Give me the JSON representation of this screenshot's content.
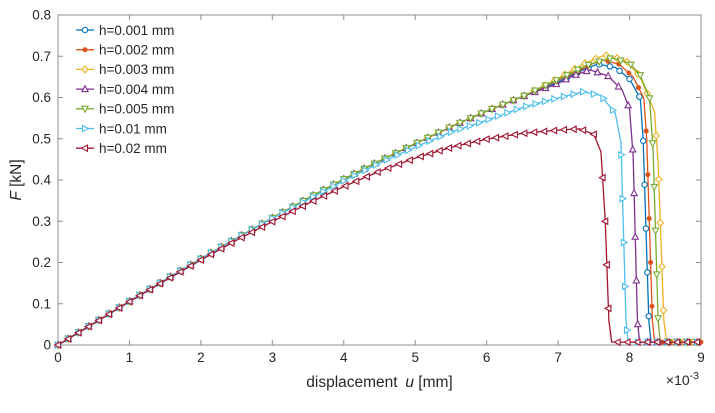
{
  "figure": {
    "background": "#ffffff",
    "axis_color": "#8f8f8f",
    "text_color": "#262626"
  },
  "chart_data": {
    "type": "line",
    "title": "",
    "xlabel": {
      "prefix": "displacement",
      "variable": "u",
      "unit": "[mm]"
    },
    "ylabel": {
      "variable": "F",
      "unit": "[kN]"
    },
    "x_scale_note": {
      "base": "×10",
      "exponent": "-3"
    },
    "x_units_note": "u values below are in units of 10^-3 mm as shown on the axis",
    "xlim": [
      0,
      9
    ],
    "ylim": [
      0,
      0.8
    ],
    "x_ticks": [
      0,
      1,
      2,
      3,
      4,
      5,
      6,
      7,
      8,
      9
    ],
    "x_tick_labels": [
      "0",
      "1",
      "2",
      "3",
      "4",
      "5",
      "6",
      "7",
      "8",
      "9"
    ],
    "y_ticks": [
      0,
      0.1,
      0.2,
      0.3,
      0.4,
      0.5,
      0.6,
      0.7,
      0.8
    ],
    "y_tick_labels": [
      "0",
      "0.1",
      "0.2",
      "0.3",
      "0.4",
      "0.5",
      "0.6",
      "0.7",
      "0.8"
    ],
    "grid": false,
    "legend": {
      "position": "top-left",
      "border": false
    },
    "series": [
      {
        "label": "h=0.001 mm",
        "color": "#0072BD",
        "marker": "circle",
        "marker_filled": false,
        "points": [
          [
            0,
            0
          ],
          [
            0.5,
            0.053
          ],
          [
            1,
            0.106
          ],
          [
            1.5,
            0.158
          ],
          [
            2,
            0.209
          ],
          [
            2.5,
            0.259
          ],
          [
            3,
            0.308
          ],
          [
            3.5,
            0.356
          ],
          [
            4,
            0.402
          ],
          [
            4.5,
            0.446
          ],
          [
            5,
            0.488
          ],
          [
            5.5,
            0.529
          ],
          [
            6,
            0.567
          ],
          [
            6.5,
            0.602
          ],
          [
            7,
            0.638
          ],
          [
            7.3,
            0.663
          ],
          [
            7.55,
            0.681
          ],
          [
            7.8,
            0.673
          ],
          [
            8,
            0.645
          ],
          [
            8.15,
            0.598
          ],
          [
            8.19,
            0.5
          ],
          [
            8.27,
            0.06
          ],
          [
            8.3,
            0.007
          ],
          [
            8.6,
            0.007
          ],
          [
            9,
            0.007
          ]
        ]
      },
      {
        "label": "h=0.002 mm",
        "color": "#D95319",
        "marker": "dot",
        "marker_filled": true,
        "points": [
          [
            0,
            0
          ],
          [
            0.5,
            0.053
          ],
          [
            1,
            0.106
          ],
          [
            1.5,
            0.158
          ],
          [
            2,
            0.209
          ],
          [
            2.5,
            0.259
          ],
          [
            3,
            0.308
          ],
          [
            3.5,
            0.356
          ],
          [
            4,
            0.402
          ],
          [
            4.5,
            0.446
          ],
          [
            5,
            0.488
          ],
          [
            5.5,
            0.529
          ],
          [
            6,
            0.567
          ],
          [
            6.5,
            0.602
          ],
          [
            7,
            0.642
          ],
          [
            7.35,
            0.67
          ],
          [
            7.6,
            0.692
          ],
          [
            7.85,
            0.681
          ],
          [
            8.05,
            0.65
          ],
          [
            8.2,
            0.598
          ],
          [
            8.24,
            0.5
          ],
          [
            8.32,
            0.06
          ],
          [
            8.35,
            0.007
          ],
          [
            8.7,
            0.007
          ],
          [
            9,
            0.007
          ]
        ]
      },
      {
        "label": "h=0.003 mm",
        "color": "#EDB120",
        "marker": "diamond",
        "marker_filled": false,
        "points": [
          [
            0,
            0
          ],
          [
            0.5,
            0.053
          ],
          [
            1,
            0.106
          ],
          [
            1.5,
            0.158
          ],
          [
            2,
            0.209
          ],
          [
            2.5,
            0.259
          ],
          [
            3,
            0.308
          ],
          [
            3.5,
            0.356
          ],
          [
            4,
            0.402
          ],
          [
            4.5,
            0.446
          ],
          [
            5,
            0.488
          ],
          [
            5.5,
            0.529
          ],
          [
            6,
            0.567
          ],
          [
            6.5,
            0.602
          ],
          [
            7,
            0.646
          ],
          [
            7.35,
            0.681
          ],
          [
            7.65,
            0.703
          ],
          [
            7.95,
            0.69
          ],
          [
            8.15,
            0.65
          ],
          [
            8.35,
            0.565
          ],
          [
            8.4,
            0.44
          ],
          [
            8.48,
            0.06
          ],
          [
            8.52,
            0.007
          ],
          [
            9,
            0.007
          ]
        ]
      },
      {
        "label": "h=0.004 mm",
        "color": "#7E2F8E",
        "marker": "triangle-up",
        "marker_filled": false,
        "points": [
          [
            0,
            0
          ],
          [
            0.5,
            0.053
          ],
          [
            1,
            0.106
          ],
          [
            1.5,
            0.158
          ],
          [
            2,
            0.209
          ],
          [
            2.5,
            0.259
          ],
          [
            3,
            0.308
          ],
          [
            3.5,
            0.356
          ],
          [
            4,
            0.402
          ],
          [
            4.5,
            0.446
          ],
          [
            5,
            0.488
          ],
          [
            5.5,
            0.529
          ],
          [
            6,
            0.567
          ],
          [
            6.5,
            0.602
          ],
          [
            7,
            0.634
          ],
          [
            7.2,
            0.652
          ],
          [
            7.45,
            0.667
          ],
          [
            7.7,
            0.652
          ],
          [
            7.9,
            0.617
          ],
          [
            8,
            0.572
          ],
          [
            8.05,
            0.46
          ],
          [
            8.11,
            0.06
          ],
          [
            8.14,
            0.007
          ],
          [
            9,
            0.007
          ]
        ]
      },
      {
        "label": "h=0.005 mm",
        "color": "#77AC30",
        "marker": "triangle-down",
        "marker_filled": false,
        "points": [
          [
            0,
            0
          ],
          [
            0.5,
            0.053
          ],
          [
            1,
            0.106
          ],
          [
            1.5,
            0.158
          ],
          [
            2,
            0.209
          ],
          [
            2.5,
            0.259
          ],
          [
            3,
            0.308
          ],
          [
            3.5,
            0.356
          ],
          [
            4,
            0.402
          ],
          [
            4.5,
            0.446
          ],
          [
            5,
            0.488
          ],
          [
            5.5,
            0.529
          ],
          [
            6,
            0.567
          ],
          [
            6.5,
            0.602
          ],
          [
            7,
            0.644
          ],
          [
            7.4,
            0.678
          ],
          [
            7.75,
            0.696
          ],
          [
            8,
            0.683
          ],
          [
            8.15,
            0.654
          ],
          [
            8.28,
            0.598
          ],
          [
            8.33,
            0.47
          ],
          [
            8.4,
            0.06
          ],
          [
            8.43,
            0.007
          ],
          [
            9,
            0.007
          ]
        ]
      },
      {
        "label": "h=0.01 mm",
        "color": "#4DBEEE",
        "marker": "triangle-right",
        "marker_filled": false,
        "points": [
          [
            0,
            0
          ],
          [
            0.5,
            0.053
          ],
          [
            1,
            0.106
          ],
          [
            1.5,
            0.158
          ],
          [
            2,
            0.209
          ],
          [
            2.5,
            0.259
          ],
          [
            3,
            0.307
          ],
          [
            3.5,
            0.353
          ],
          [
            4,
            0.398
          ],
          [
            4.5,
            0.441
          ],
          [
            5,
            0.48
          ],
          [
            5.5,
            0.516
          ],
          [
            6,
            0.545
          ],
          [
            6.5,
            0.576
          ],
          [
            7,
            0.599
          ],
          [
            7.35,
            0.614
          ],
          [
            7.6,
            0.605
          ],
          [
            7.8,
            0.562
          ],
          [
            7.88,
            0.49
          ],
          [
            7.95,
            0.06
          ],
          [
            7.98,
            0.007
          ],
          [
            9,
            0.007
          ]
        ]
      },
      {
        "label": "h=0.02 mm",
        "color": "#A2142F",
        "marker": "triangle-left",
        "marker_filled": false,
        "points": [
          [
            0,
            0
          ],
          [
            0.5,
            0.052
          ],
          [
            1,
            0.105
          ],
          [
            1.5,
            0.156
          ],
          [
            2,
            0.206
          ],
          [
            2.5,
            0.254
          ],
          [
            3,
            0.299
          ],
          [
            3.5,
            0.343
          ],
          [
            4,
            0.384
          ],
          [
            4.5,
            0.421
          ],
          [
            5,
            0.453
          ],
          [
            5.5,
            0.479
          ],
          [
            6,
            0.499
          ],
          [
            6.5,
            0.513
          ],
          [
            7,
            0.521
          ],
          [
            7.3,
            0.524
          ],
          [
            7.5,
            0.511
          ],
          [
            7.6,
            0.468
          ],
          [
            7.66,
            0.3
          ],
          [
            7.71,
            0.06
          ],
          [
            7.75,
            0.007
          ],
          [
            9,
            0.007
          ]
        ]
      }
    ]
  }
}
